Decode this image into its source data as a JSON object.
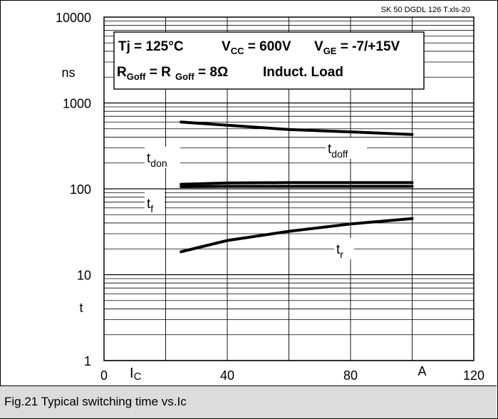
{
  "caption": "Fig.21 Typical switching time vs.Ic",
  "file_tag": "SK 50 DGDL 126 T.xls-20",
  "conditions": {
    "line1": [
      {
        "text": "Tj = 125°C",
        "sub": ""
      },
      {
        "text": "V",
        "sub": "CC",
        "tail": " = 600V"
      },
      {
        "text": "V",
        "sub": "GE",
        "tail": " = -7/+15V"
      }
    ],
    "line2": [
      {
        "text": "R",
        "sub": "Goff",
        "tail": " = R"
      },
      {
        "text": "",
        "sub": "Goff",
        "tail": " = 8Ω"
      },
      {
        "text": "Induct. Load",
        "sub": ""
      }
    ]
  },
  "chart_data": {
    "type": "line",
    "ylabel_top": "ns",
    "ylabel_bottom": "t",
    "xlabel": "I",
    "xlabel_sub": "C",
    "xunit": "A",
    "xlim": [
      0,
      120
    ],
    "ylim": [
      1,
      10000
    ],
    "yscale": "log",
    "grid": true,
    "x_ticks": [
      "0",
      "40",
      "80",
      "120"
    ],
    "y_ticks": [
      "1",
      "10",
      "100",
      "1000",
      "10000"
    ],
    "series": [
      {
        "name": "t",
        "name_sub": "doff",
        "x": [
          25,
          40,
          60,
          80,
          100
        ],
        "y": [
          600,
          550,
          490,
          460,
          430
        ]
      },
      {
        "name": "t",
        "name_sub": "don",
        "x": [
          25,
          40,
          60,
          80,
          100
        ],
        "y": [
          113,
          117,
          118,
          118,
          118
        ]
      },
      {
        "name": "t",
        "name_sub": "f",
        "x": [
          25,
          40,
          60,
          80,
          100
        ],
        "y": [
          106,
          107,
          107,
          107,
          107
        ]
      },
      {
        "name": "t",
        "name_sub": "r",
        "x": [
          25,
          40,
          60,
          80,
          100
        ],
        "y": [
          18.5,
          25,
          32,
          39,
          45
        ]
      }
    ]
  }
}
